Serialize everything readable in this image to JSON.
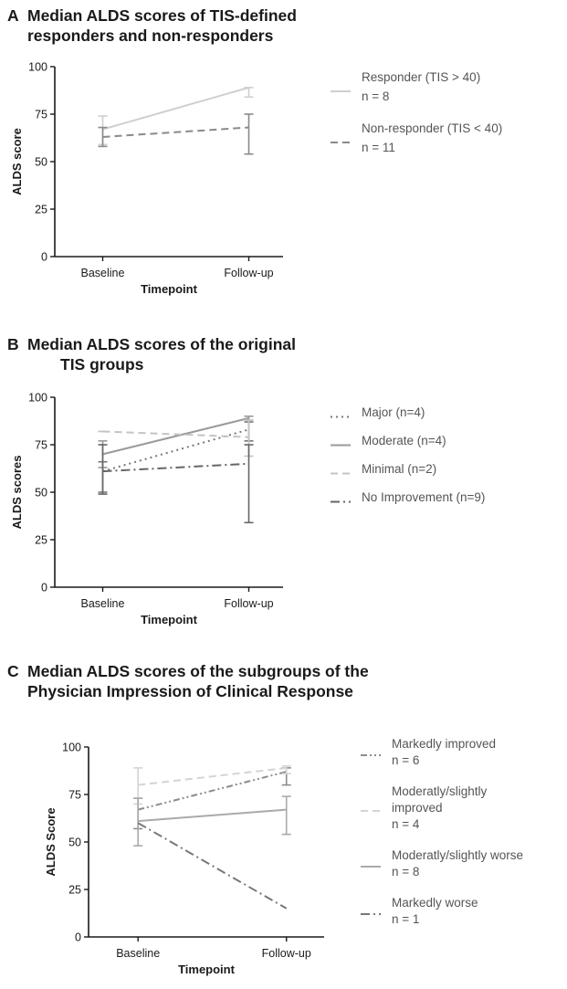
{
  "figures": [
    {
      "letter": "A",
      "title_lines": [
        "Median ALDS scores of TIS-defined",
        "responders and non-responders"
      ]
    },
    {
      "letter": "B",
      "title_lines": [
        "Median ALDS scores of the original",
        "TIS groups"
      ]
    },
    {
      "letter": "C",
      "title_lines": [
        "Median ALDS scores of the subgroups of the",
        "Physician Impression of Clinical Response"
      ]
    }
  ],
  "chart_data": [
    {
      "type": "line",
      "categories": [
        "Baseline",
        "Follow-up"
      ],
      "xlabel": "Timepoint",
      "ylabel": "ALDS score",
      "ylim": [
        0,
        100
      ],
      "yticks": [
        0,
        25,
        50,
        75,
        100
      ],
      "legend_position": "right",
      "series": [
        {
          "legend": [
            "Responder (TIS > 40)",
            "n = 8"
          ],
          "values": [
            67,
            89
          ],
          "err_low": [
            59,
            84
          ],
          "err_high": [
            74,
            89
          ],
          "color": "#cfcfcf",
          "dash": "solid"
        },
        {
          "legend": [
            "Non-responder (TIS < 40)",
            "n = 11"
          ],
          "values": [
            63,
            68
          ],
          "err_low": [
            58,
            54
          ],
          "err_high": [
            68,
            75
          ],
          "color": "#8a8a8a",
          "dash": "dashed"
        }
      ]
    },
    {
      "type": "line",
      "categories": [
        "Baseline",
        "Follow-up"
      ],
      "xlabel": "Timepoint",
      "ylabel": "ALDS scores",
      "ylim": [
        0,
        100
      ],
      "yticks": [
        0,
        25,
        50,
        75,
        100
      ],
      "legend_position": "right",
      "series": [
        {
          "legend": [
            "Major (n=4)"
          ],
          "values": [
            61,
            83
          ],
          "err_low": [
            50,
            77
          ],
          "err_high": [
            66,
            87
          ],
          "color": "#777777",
          "dash": "dotted"
        },
        {
          "legend": [
            "Moderate (n=4)"
          ],
          "values": [
            70,
            89
          ],
          "err_low": [
            63,
            88
          ],
          "err_high": [
            77,
            90
          ],
          "color": "#9a9a9a",
          "dash": "solid"
        },
        {
          "legend": [
            "Minimal (n=2)"
          ],
          "values": [
            82,
            79
          ],
          "err_low": [
            82,
            69
          ],
          "err_high": [
            82,
            88
          ],
          "color": "#c4c4c4",
          "dash": "dashed"
        },
        {
          "legend": [
            "No Improvement (n=9)"
          ],
          "values": [
            61,
            65
          ],
          "err_low": [
            49,
            34
          ],
          "err_high": [
            75,
            75
          ],
          "color": "#666666",
          "dash": "dashdot"
        }
      ]
    },
    {
      "type": "line",
      "categories": [
        "Baseline",
        "Follow-up"
      ],
      "xlabel": "Timepoint",
      "ylabel": "ALDS Score",
      "ylim": [
        0,
        100
      ],
      "yticks": [
        0,
        25,
        50,
        75,
        100
      ],
      "legend_position": "right",
      "series": [
        {
          "legend": [
            "Markedly improved",
            "n = 6"
          ],
          "values": [
            67,
            87
          ],
          "err_low": [
            57,
            80
          ],
          "err_high": [
            73,
            89
          ],
          "color": "#8c8c8c",
          "dash": "dashdotdot"
        },
        {
          "legend": [
            "Moderatly/slightly",
            "improved",
            "n = 4"
          ],
          "values": [
            80,
            89
          ],
          "err_low": [
            70,
            86
          ],
          "err_high": [
            89,
            90
          ],
          "color": "#d4d4d4",
          "dash": "dashed"
        },
        {
          "legend": [
            "Moderatly/slightly worse",
            "n = 8"
          ],
          "values": [
            61,
            67
          ],
          "err_low": [
            48,
            54
          ],
          "err_high": [
            73,
            74
          ],
          "color": "#aaaaaa",
          "dash": "solid"
        },
        {
          "legend": [
            "Markedly worse",
            "n = 1"
          ],
          "values": [
            60,
            15
          ],
          "err_low": null,
          "err_high": null,
          "color": "#777777",
          "dash": "dashdot"
        }
      ]
    }
  ]
}
